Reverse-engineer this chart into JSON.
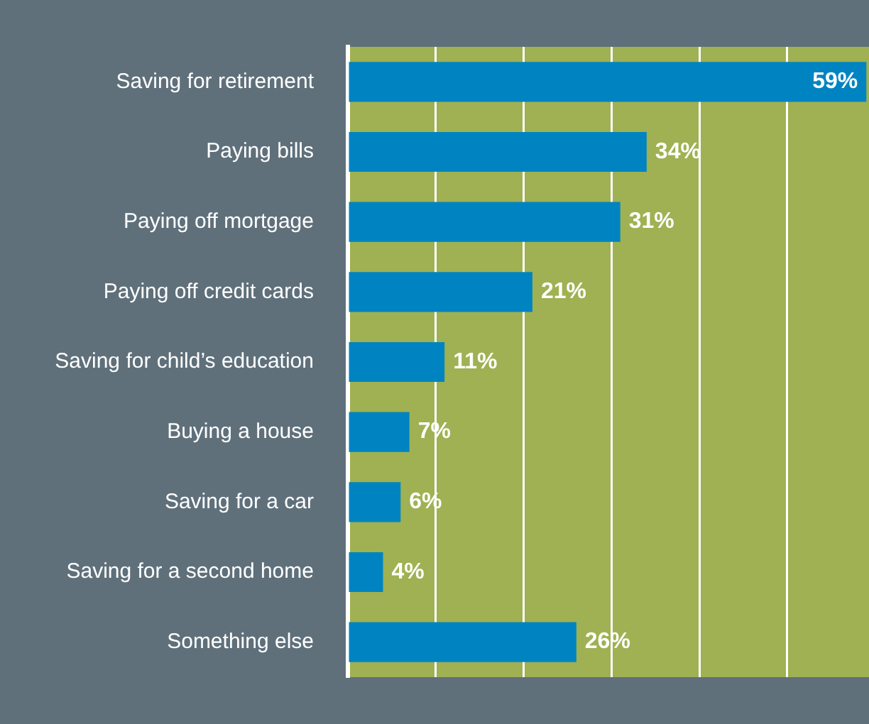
{
  "chart_data": {
    "type": "bar",
    "orientation": "horizontal",
    "categories": [
      "Saving for retirement",
      "Paying bills",
      "Paying off mortgage",
      "Paying off credit cards",
      "Saving for child’s education",
      "Buying a house",
      "Saving for a car",
      "Saving for a second home",
      "Something else"
    ],
    "values": [
      59,
      34,
      31,
      21,
      11,
      7,
      6,
      4,
      26
    ],
    "value_labels": [
      "59%",
      "34%",
      "31%",
      "21%",
      "11%",
      "7%",
      "6%",
      "4%",
      "26%"
    ],
    "color": "#0084c1",
    "xlim": [
      0,
      59.3
    ],
    "xticks": [
      {
        "value": 0,
        "label": null
      },
      {
        "value": 10,
        "label": null
      },
      {
        "value": 20,
        "label": null
      },
      {
        "value": 30,
        "label": null
      },
      {
        "value": 40,
        "label": null
      },
      {
        "value": 50,
        "label": null
      }
    ],
    "grid": "x",
    "legend": false,
    "tick_labels": "y"
  }
}
